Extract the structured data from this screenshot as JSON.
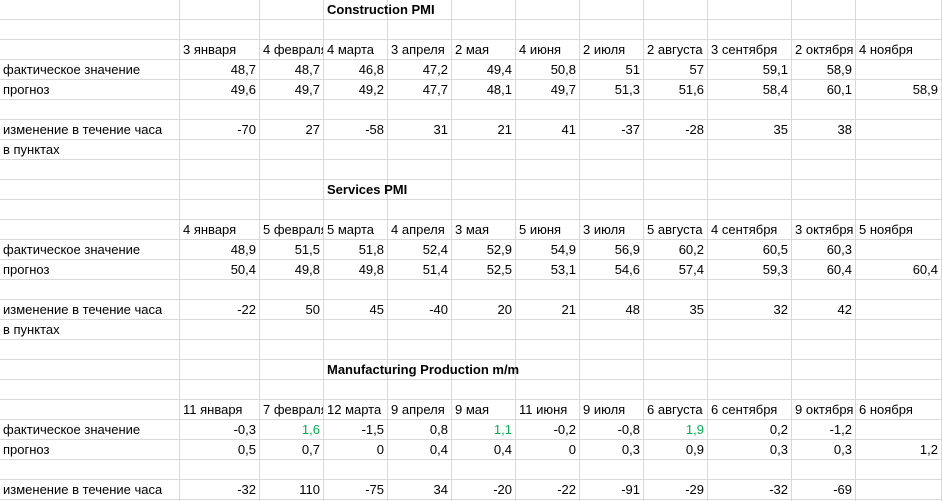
{
  "sections": [
    {
      "title": "Construction PMI",
      "dates": [
        "3  января",
        "4 февраля",
        "4 марта",
        "3 апреля",
        "2 мая",
        "4 июня",
        "2 июля",
        "2 августа",
        "3 сентября",
        "2 октября",
        "4 ноября"
      ],
      "actual_label": "фактическое значение",
      "actual": [
        "48,7",
        "48,7",
        "46,8",
        "47,2",
        "49,4",
        "50,8",
        "51",
        "57",
        "59,1",
        "58,9",
        ""
      ],
      "forecast_label": "прогноз",
      "forecast": [
        "49,6",
        "49,7",
        "49,2",
        "47,7",
        "48,1",
        "49,7",
        "51,3",
        "51,6",
        "58,4",
        "60,1",
        "58,9"
      ],
      "change_label": "изменение в течение часа",
      "change_label_2": "в пунктах",
      "change": [
        "-70",
        "27",
        "-58",
        "31",
        "21",
        "41",
        "-37",
        "-28",
        "35",
        "38",
        ""
      ]
    },
    {
      "title": "Services PMI",
      "dates": [
        "4  января",
        "5 февраля",
        "5 марта",
        "4 апреля",
        "3 мая",
        "5 июня",
        "3 июля",
        "5 августа",
        "4 сентября",
        "3 октября",
        "5 ноября"
      ],
      "actual_label": "фактическое значение",
      "actual": [
        "48,9",
        "51,5",
        "51,8",
        "52,4",
        "52,9",
        "54,9",
        "56,9",
        "60,2",
        "60,5",
        "60,3",
        ""
      ],
      "forecast_label": "прогноз",
      "forecast": [
        "50,4",
        "49,8",
        "49,8",
        "51,4",
        "52,5",
        "53,1",
        "54,6",
        "57,4",
        "59,3",
        "60,4",
        "60,4"
      ],
      "change_label": "изменение в течение часа",
      "change_label_2": "в пунктах",
      "change": [
        "-22",
        "50",
        "45",
        "-40",
        "20",
        "21",
        "48",
        "35",
        "32",
        "42",
        ""
      ]
    },
    {
      "title": "Manufacturing Production m/m",
      "dates": [
        "11  января",
        "7 февраля",
        "12 марта",
        "9 апреля",
        "9 мая",
        "11 июня",
        "9 июля",
        "6 августа",
        "6 сентября",
        "9 октября",
        "6 ноября"
      ],
      "actual_label": "фактическое значение",
      "actual": [
        "-0,3",
        "1,6",
        "-1,5",
        "0,8",
        "1,1",
        "-0,2",
        "-0,8",
        "1,9",
        "0,2",
        "-1,2",
        ""
      ],
      "actual_green": [
        false,
        true,
        false,
        false,
        true,
        false,
        false,
        true,
        false,
        false,
        false
      ],
      "forecast_label": "прогноз",
      "forecast": [
        "0,5",
        "0,7",
        "0",
        "0,4",
        "0,4",
        "0",
        "0,3",
        "0,9",
        "0,3",
        "0,3",
        "1,2"
      ],
      "change_label": "изменение в течение часа",
      "change": [
        "-32",
        "110",
        "-75",
        "34",
        "-20",
        "-22",
        "-91",
        "-29",
        "-32",
        "-69",
        ""
      ]
    }
  ],
  "colors": {
    "gridline": "#d9d9d9",
    "positive_highlight": "#00b050",
    "text": "#000000"
  }
}
